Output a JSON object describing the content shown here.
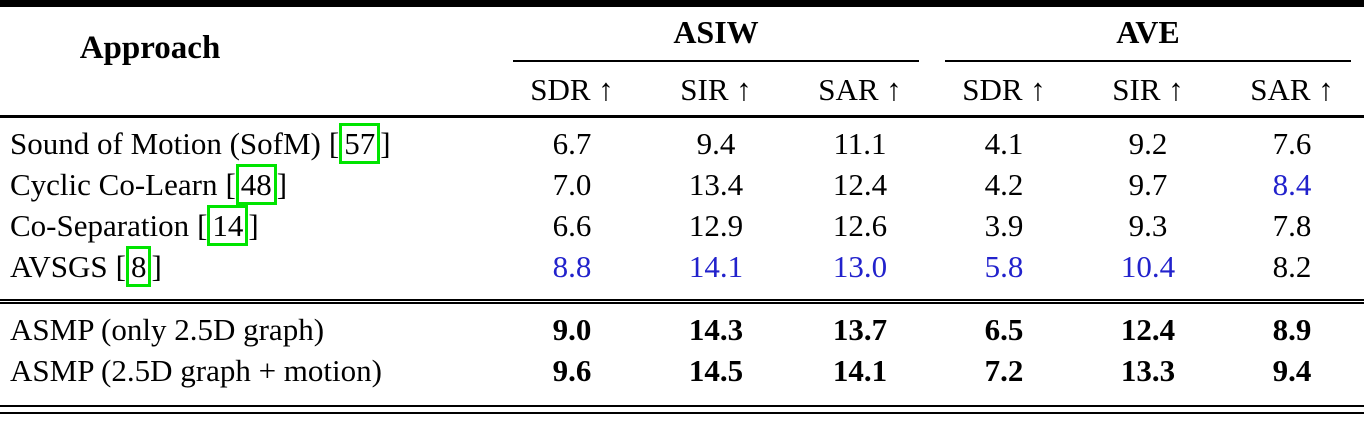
{
  "colors": {
    "text": "#000000",
    "background": "#ffffff",
    "second_best_blue": "#2222cc",
    "citation_green": "#00e400"
  },
  "misc": {
    "cite_open": "[",
    "cite_close": "]"
  },
  "header": {
    "approach": "Approach",
    "groups": [
      {
        "label": "ASIW",
        "metrics": [
          "SDR ↑",
          "SIR ↑",
          "SAR ↑"
        ]
      },
      {
        "label": "AVE",
        "metrics": [
          "SDR ↑",
          "SIR ↑",
          "SAR ↑"
        ]
      }
    ]
  },
  "baseline_rows": [
    {
      "name": "Sound of Motion (SofM)",
      "cite": "57",
      "values": [
        "6.7",
        "9.4",
        "11.1",
        "4.1",
        "9.2",
        "7.6"
      ],
      "styles": [
        "black",
        "black",
        "black",
        "black",
        "black",
        "black"
      ]
    },
    {
      "name": "Cyclic Co-Learn",
      "cite": "48",
      "values": [
        "7.0",
        "13.4",
        "12.4",
        "4.2",
        "9.7",
        "8.4"
      ],
      "styles": [
        "black",
        "black",
        "black",
        "black",
        "black",
        "blue"
      ]
    },
    {
      "name": "Co-Separation",
      "cite": "14",
      "values": [
        "6.6",
        "12.9",
        "12.6",
        "3.9",
        "9.3",
        "7.8"
      ],
      "styles": [
        "black",
        "black",
        "black",
        "black",
        "black",
        "black"
      ]
    },
    {
      "name": "AVSGS",
      "cite": "8",
      "values": [
        "8.8",
        "14.1",
        "13.0",
        "5.8",
        "10.4",
        "8.2"
      ],
      "styles": [
        "blue",
        "blue",
        "blue",
        "blue",
        "blue",
        "black"
      ]
    }
  ],
  "asmp_rows": [
    {
      "name": "ASMP (only 2.5D graph)",
      "values": [
        "9.0",
        "14.3",
        "13.7",
        "6.5",
        "12.4",
        "8.9"
      ],
      "styles": [
        "bold",
        "bold",
        "bold",
        "bold",
        "bold",
        "bold"
      ]
    },
    {
      "name": "ASMP (2.5D graph + motion)",
      "values": [
        "9.6",
        "14.5",
        "14.1",
        "7.2",
        "13.3",
        "9.4"
      ],
      "styles": [
        "bold",
        "bold",
        "bold",
        "bold",
        "bold",
        "bold"
      ]
    }
  ]
}
